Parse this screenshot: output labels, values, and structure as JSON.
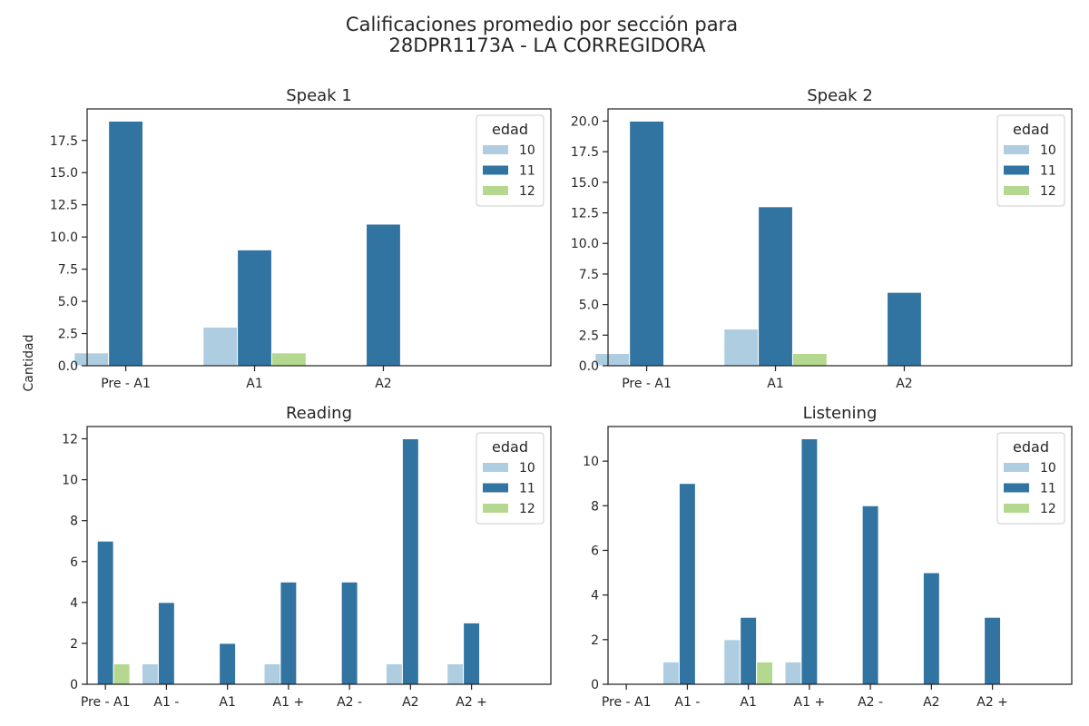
{
  "figure": {
    "title_line1": "Calificaciones promedio por sección para",
    "title_line2": "28DPR1173A - LA CORREGIDORA",
    "ylabel": "Cantidad"
  },
  "colors": {
    "10": "#aecde1",
    "11": "#3174a1",
    "12": "#b4d88f"
  },
  "chart_data": [
    {
      "type": "bar",
      "title": "Speak 1",
      "categories": [
        "Pre - A1",
        "A1",
        "A2"
      ],
      "ylim": [
        0,
        19.95
      ],
      "yticks": [
        0,
        2.5,
        5,
        7.5,
        10,
        12.5,
        15,
        17.5
      ],
      "ytick_labels": [
        "0.0",
        "2.5",
        "5.0",
        "7.5",
        "10.0",
        "12.5",
        "15.0",
        "17.5"
      ],
      "legend": {
        "title": "edad",
        "position": "top-right"
      },
      "series": [
        {
          "name": "10",
          "values": [
            1,
            3,
            0
          ]
        },
        {
          "name": "11",
          "values": [
            19,
            9,
            11
          ]
        },
        {
          "name": "12",
          "values": [
            0,
            1,
            0
          ]
        }
      ]
    },
    {
      "type": "bar",
      "title": "Speak 2",
      "categories": [
        "Pre - A1",
        "A1",
        "A2"
      ],
      "ylim": [
        0,
        21
      ],
      "yticks": [
        0,
        2.5,
        5,
        7.5,
        10,
        12.5,
        15,
        17.5,
        20
      ],
      "ytick_labels": [
        "0.0",
        "2.5",
        "5.0",
        "7.5",
        "10.0",
        "12.5",
        "15.0",
        "17.5",
        "20.0"
      ],
      "legend": {
        "title": "edad",
        "position": "top-right"
      },
      "series": [
        {
          "name": "10",
          "values": [
            1,
            3,
            0
          ]
        },
        {
          "name": "11",
          "values": [
            20,
            13,
            6
          ]
        },
        {
          "name": "12",
          "values": [
            0,
            1,
            0
          ]
        }
      ]
    },
    {
      "type": "bar",
      "title": "Reading",
      "categories": [
        "Pre - A1",
        "A1 -",
        "A1",
        "A1 +",
        "A2 -",
        "A2",
        "A2 +"
      ],
      "ylim": [
        0,
        12.6
      ],
      "yticks": [
        0,
        2,
        4,
        6,
        8,
        10,
        12
      ],
      "ytick_labels": [
        "0",
        "2",
        "4",
        "6",
        "8",
        "10",
        "12"
      ],
      "legend": {
        "title": "edad",
        "position": "top-right"
      },
      "series": [
        {
          "name": "10",
          "values": [
            0,
            1,
            0,
            1,
            0,
            1,
            1
          ]
        },
        {
          "name": "11",
          "values": [
            7,
            4,
            2,
            5,
            5,
            12,
            3
          ]
        },
        {
          "name": "12",
          "values": [
            1,
            0,
            0,
            0,
            0,
            0,
            0
          ]
        }
      ]
    },
    {
      "type": "bar",
      "title": "Listening",
      "categories": [
        "Pre - A1",
        "A1 -",
        "A1",
        "A1 +",
        "A2 -",
        "A2",
        "A2 +"
      ],
      "ylim": [
        0,
        11.55
      ],
      "yticks": [
        0,
        2,
        4,
        6,
        8,
        10
      ],
      "ytick_labels": [
        "0",
        "2",
        "4",
        "6",
        "8",
        "10"
      ],
      "legend": {
        "title": "edad",
        "position": "top-right"
      },
      "series": [
        {
          "name": "10",
          "values": [
            0,
            1,
            2,
            1,
            0,
            0,
            0
          ]
        },
        {
          "name": "11",
          "values": [
            0,
            9,
            3,
            11,
            8,
            5,
            3
          ]
        },
        {
          "name": "12",
          "values": [
            0,
            0,
            1,
            0,
            0,
            0,
            0
          ]
        }
      ]
    }
  ]
}
